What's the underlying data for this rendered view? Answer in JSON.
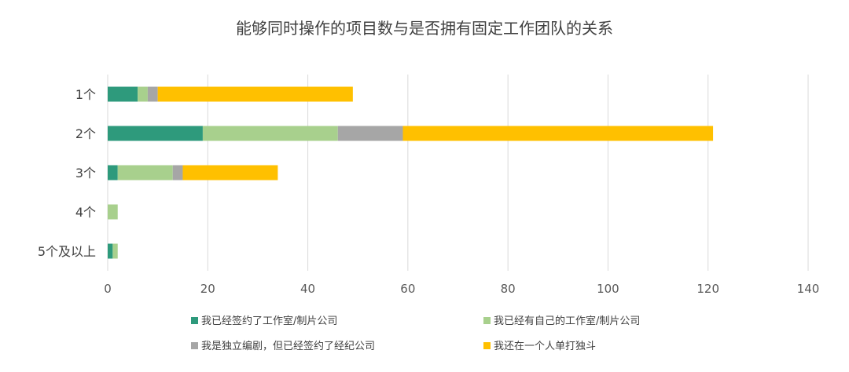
{
  "chart_data": {
    "type": "bar",
    "orientation": "horizontal",
    "stacked": true,
    "title": "能够同时操作的项目数与是否拥有固定工作团队的关系",
    "categories": [
      "1个",
      "2个",
      "3个",
      "4个",
      "5个及以上"
    ],
    "series": [
      {
        "name": "我已经签约了工作室/制片公司",
        "color": "#2e9a7c",
        "values": [
          6,
          19,
          2,
          0,
          1
        ]
      },
      {
        "name": "我已经有自己的工作室/制片公司",
        "color": "#a8d08d",
        "values": [
          2,
          27,
          11,
          2,
          1
        ]
      },
      {
        "name": "我是独立编剧，但已经签约了经纪公司",
        "color": "#a6a6a6",
        "values": [
          2,
          13,
          2,
          0,
          0
        ]
      },
      {
        "name": "我还在一个人单打独斗",
        "color": "#ffc000",
        "values": [
          39,
          62,
          19,
          0,
          0
        ]
      }
    ],
    "xlim": [
      0,
      140
    ],
    "xticks": [
      0,
      20,
      40,
      60,
      80,
      100,
      120,
      140
    ],
    "grid": "vertical",
    "legend_position": "bottom"
  }
}
